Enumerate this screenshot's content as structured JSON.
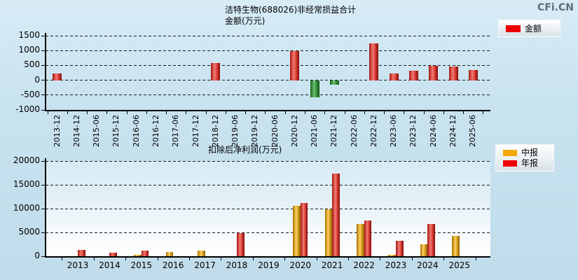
{
  "logo": "CFi.CN",
  "colors": {
    "background": "#c9e3f0",
    "legend_amount_swatch": "#ee0000",
    "legend_interim_swatch": "#f5a800",
    "legend_annual_swatch": "#ee0000",
    "positive_bar": "#e04840",
    "negative_bar": "#3f9a44",
    "interim_bar": "#e8ac29",
    "logo_gray": "#5c6e78"
  },
  "chart_data": [
    {
      "type": "bar",
      "title": "洁特生物(688026)非经常损益合计",
      "subtitle": "金额(万元)",
      "ylabel": "金额(万元)",
      "ylim": [
        -1000,
        1500
      ],
      "yticks": [
        1500,
        1000,
        500,
        0,
        -500,
        -1000
      ],
      "grid": "dashed-horizontal",
      "legend_position": "top-right",
      "categories": [
        "2013-12",
        "2014-12",
        "2015-06",
        "2015-12",
        "2016-06",
        "2016-12",
        "2017-06",
        "2017-12",
        "2018-12",
        "2019-06",
        "2019-12",
        "2020-06",
        "2020-12",
        "2021-06",
        "2021-12",
        "2022-06",
        "2022-12",
        "2023-06",
        "2023-12",
        "2024-06",
        "2024-12",
        "2025-06"
      ],
      "series": [
        {
          "name": "金额",
          "swatch": "#ee0000",
          "color_rule": "red-if-positive-green-if-negative",
          "values": [
            230,
            null,
            null,
            null,
            null,
            null,
            null,
            null,
            590,
            null,
            null,
            null,
            990,
            -570,
            -160,
            null,
            1250,
            230,
            330,
            480,
            460,
            340
          ]
        }
      ]
    },
    {
      "type": "bar",
      "title": "扣除后净利润(万元)",
      "ylim": [
        0,
        20000
      ],
      "yticks": [
        20000,
        15000,
        10000,
        5000,
        0
      ],
      "grid": "dashed-horizontal",
      "legend_position": "top-right",
      "categories": [
        "2013",
        "2014",
        "2015",
        "2016",
        "2017",
        "2018",
        "2019",
        "2020",
        "2021",
        "2022",
        "2023",
        "2024",
        "2025"
      ],
      "series": [
        {
          "name": "中报",
          "swatch": "#f5a800",
          "values": [
            null,
            null,
            250,
            900,
            1250,
            null,
            null,
            10600,
            9900,
            6700,
            300,
            2500,
            4300
          ]
        },
        {
          "name": "年报",
          "swatch": "#ee0000",
          "values": [
            1300,
            700,
            1250,
            null,
            null,
            4800,
            null,
            11200,
            17400,
            7450,
            3200,
            6800,
            null
          ]
        }
      ]
    }
  ]
}
